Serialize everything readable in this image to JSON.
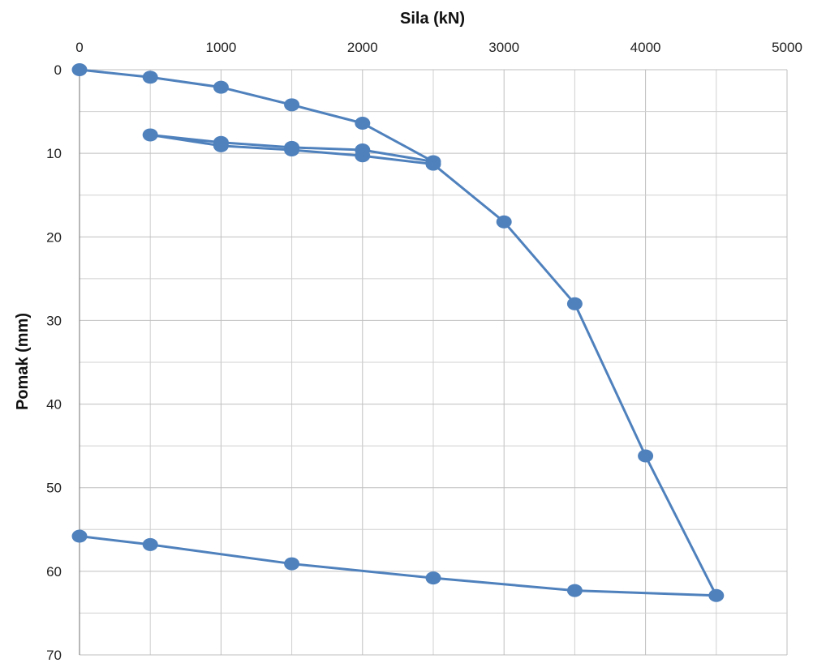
{
  "chart_data": {
    "type": "scatter",
    "title": "",
    "xlabel": "Sila (kN)",
    "ylabel": "Pomak (mm)",
    "xlim": [
      0,
      5000
    ],
    "ylim": [
      0,
      70
    ],
    "x_axis_position": "top",
    "y_axis_reversed": true,
    "grid": true,
    "x_ticks": [
      "0",
      "1000",
      "2000",
      "3000",
      "4000",
      "5000"
    ],
    "y_ticks": [
      "0",
      "10",
      "20",
      "30",
      "40",
      "50",
      "60",
      "70"
    ],
    "series": [
      {
        "color": "#4f81bd",
        "points": [
          [
            0,
            0
          ],
          [
            500,
            0.9
          ],
          [
            1000,
            2.1
          ],
          [
            1500,
            4.2
          ],
          [
            2000,
            6.4
          ],
          [
            2500,
            11.0
          ],
          [
            2000,
            9.6
          ],
          [
            1500,
            9.3
          ],
          [
            1000,
            8.7
          ],
          [
            500,
            7.8
          ],
          [
            1000,
            9.1
          ],
          [
            1500,
            9.6
          ],
          [
            2000,
            10.3
          ],
          [
            2500,
            11.3
          ],
          [
            3000,
            18.2
          ],
          [
            3500,
            28.0
          ],
          [
            4000,
            46.2
          ],
          [
            4500,
            62.9
          ],
          [
            3500,
            62.3
          ],
          [
            2500,
            60.8
          ],
          [
            1500,
            59.1
          ],
          [
            500,
            56.8
          ],
          [
            0,
            55.8
          ]
        ]
      }
    ]
  }
}
